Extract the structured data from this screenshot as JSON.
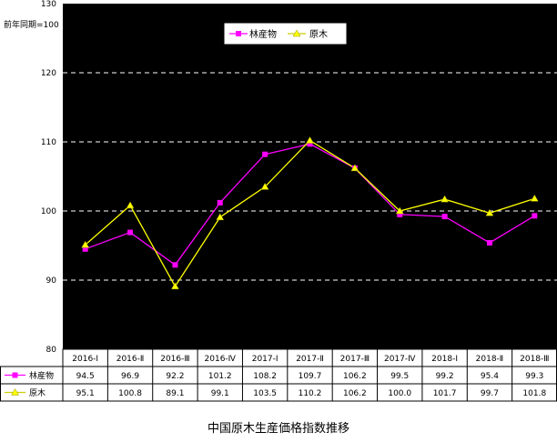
{
  "chart_data": {
    "type": "line",
    "title": "中国原木生産価格指数推移",
    "ylabel": "前年同期=100",
    "ylim": [
      80,
      130
    ],
    "yticks": [
      80,
      90,
      100,
      110,
      120,
      130
    ],
    "grid": "dashed horizontal at 90, 100, 110, 120",
    "legend_position": "top-center",
    "categories": [
      "2016-Ⅰ",
      "2016-Ⅱ",
      "2016-Ⅲ",
      "2016-Ⅳ",
      "2017-Ⅰ",
      "2017-Ⅱ",
      "2017-Ⅲ",
      "2017-Ⅳ",
      "2018-Ⅰ",
      "2018-Ⅱ",
      "2018-Ⅲ"
    ],
    "series": [
      {
        "name": "林産物",
        "color": "#ff00ff",
        "marker": "square",
        "values": [
          94.5,
          96.9,
          92.2,
          101.2,
          108.2,
          109.7,
          106.2,
          99.5,
          99.2,
          95.4,
          99.3
        ],
        "labels": [
          "94.5",
          "96.9",
          "92.2",
          "101.2",
          "108.2",
          "109.7",
          "106.2",
          "99.5",
          "99.2",
          "95.4",
          "99.3"
        ]
      },
      {
        "name": "原木",
        "color": "#ffff00",
        "marker": "triangle",
        "values": [
          95.1,
          100.8,
          89.1,
          99.1,
          103.5,
          110.2,
          106.2,
          100.0,
          101.7,
          99.7,
          101.8
        ],
        "labels": [
          "95.1",
          "100.8",
          "89.1",
          "99.1",
          "103.5",
          "110.2",
          "106.2",
          "100.0",
          "101.7",
          "99.7",
          "101.8"
        ]
      }
    ],
    "background": "#000000",
    "grid_color": "#ffffff"
  }
}
